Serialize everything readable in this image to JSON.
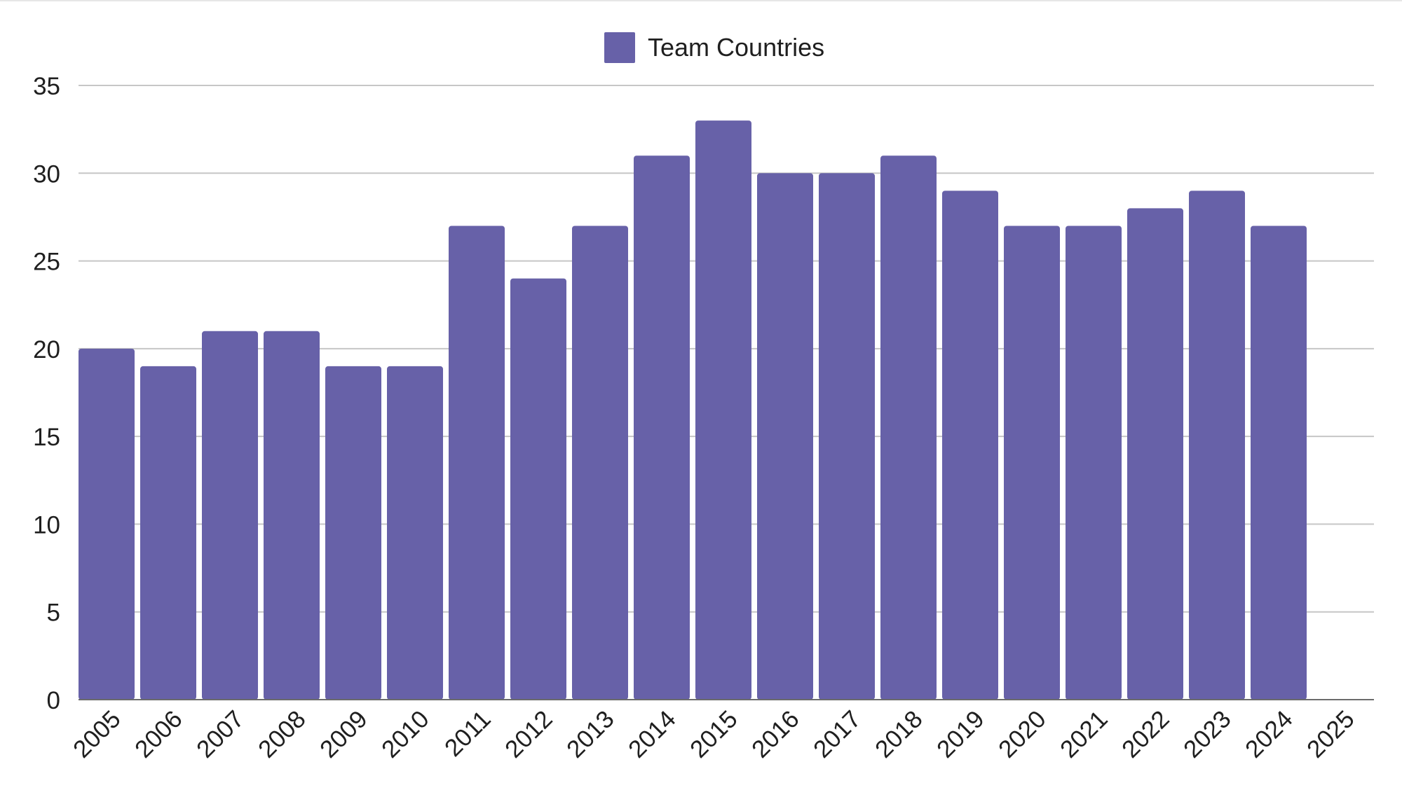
{
  "chart_data": {
    "type": "bar",
    "categories": [
      "2005",
      "2006",
      "2007",
      "2008",
      "2009",
      "2010",
      "2011",
      "2012",
      "2013",
      "2014",
      "2015",
      "2016",
      "2017",
      "2018",
      "2019",
      "2020",
      "2021",
      "2022",
      "2023",
      "2024",
      "2025"
    ],
    "series": [
      {
        "name": "Team Countries",
        "values": [
          20,
          19,
          21,
          21,
          19,
          19,
          27,
          24,
          27,
          31,
          33,
          30,
          30,
          31,
          29,
          27,
          27,
          28,
          29,
          27,
          null
        ],
        "color": "#6761a8"
      }
    ],
    "title": "",
    "xlabel": "",
    "ylabel": "",
    "ylim": [
      0,
      35
    ],
    "yticks": [
      0,
      5,
      10,
      15,
      20,
      25,
      30,
      35
    ],
    "grid": true,
    "legend_position": "top-center",
    "x_tick_rotation": "-45deg"
  }
}
